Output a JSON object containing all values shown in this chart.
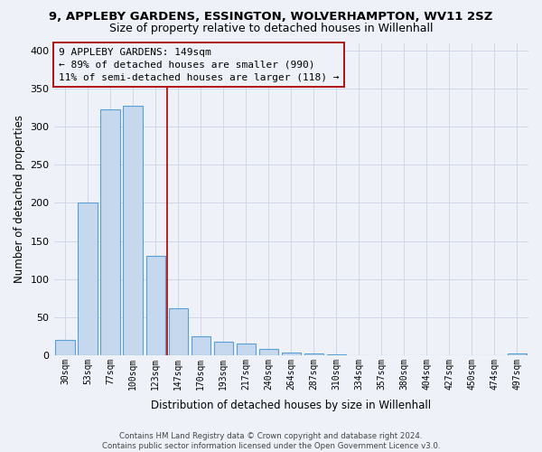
{
  "title": "9, APPLEBY GARDENS, ESSINGTON, WOLVERHAMPTON, WV11 2SZ",
  "subtitle": "Size of property relative to detached houses in Willenhall",
  "xlabel": "Distribution of detached houses by size in Willenhall",
  "ylabel": "Number of detached properties",
  "bar_color": "#c5d8ee",
  "bar_edge_color": "#5a9fd4",
  "categories": [
    "30sqm",
    "53sqm",
    "77sqm",
    "100sqm",
    "123sqm",
    "147sqm",
    "170sqm",
    "193sqm",
    "217sqm",
    "240sqm",
    "264sqm",
    "287sqm",
    "310sqm",
    "334sqm",
    "357sqm",
    "380sqm",
    "404sqm",
    "427sqm",
    "450sqm",
    "474sqm",
    "497sqm"
  ],
  "values": [
    20,
    200,
    323,
    328,
    130,
    62,
    25,
    18,
    15,
    8,
    3,
    2,
    1,
    0,
    0,
    0,
    0,
    0,
    0,
    0,
    2
  ],
  "vline_position": 4.5,
  "vline_color": "#aa0000",
  "annotation_box_text": "9 APPLEBY GARDENS: 149sqm\n← 89% of detached houses are smaller (990)\n11% of semi-detached houses are larger (118) →",
  "ylim": [
    0,
    410
  ],
  "yticks": [
    0,
    50,
    100,
    150,
    200,
    250,
    300,
    350,
    400
  ],
  "grid_color": "#d0d8e8",
  "background_color": "#eef2f8",
  "footer_text": "Contains HM Land Registry data © Crown copyright and database right 2024.\nContains public sector information licensed under the Open Government Licence v3.0.",
  "title_fontsize": 9.5,
  "subtitle_fontsize": 9
}
